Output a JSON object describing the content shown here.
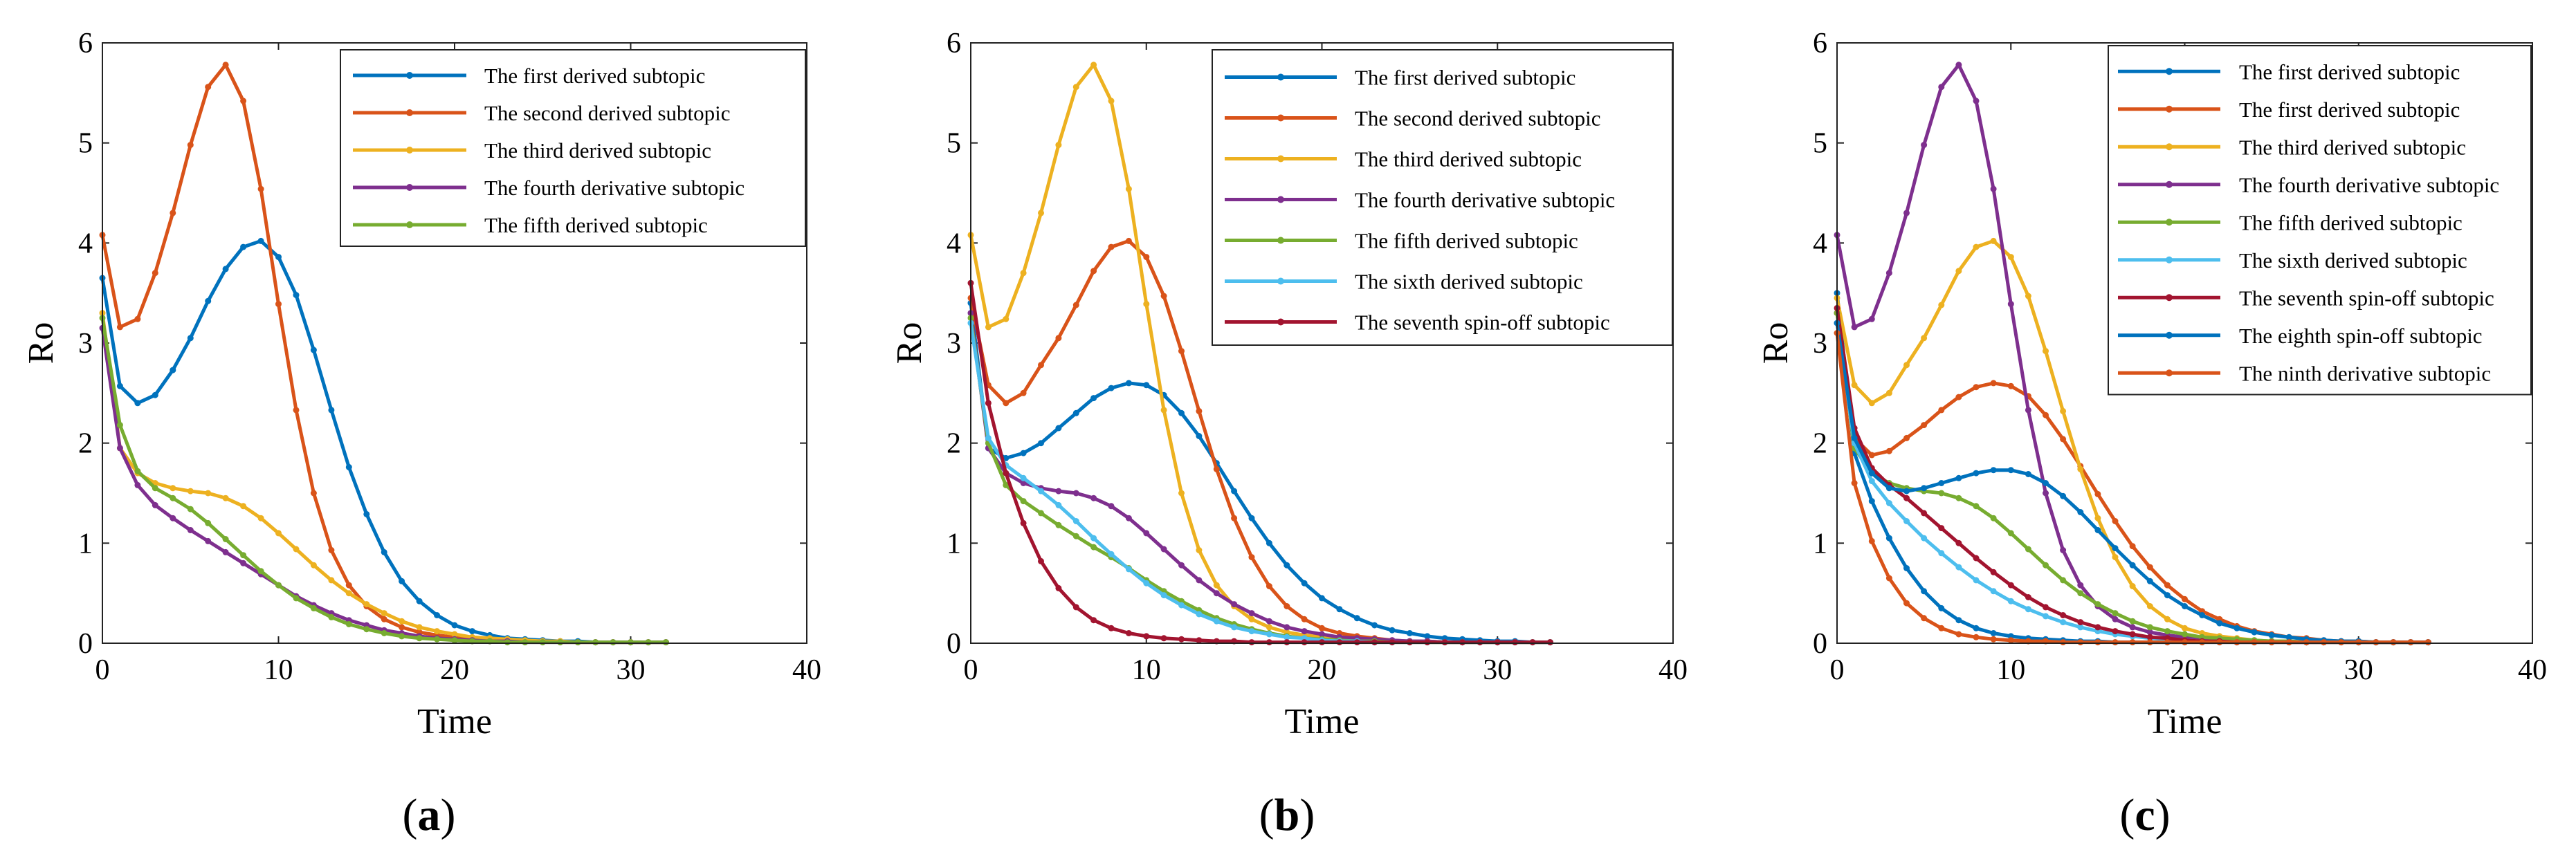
{
  "colors": {
    "blue": "#0072BD",
    "orange": "#D95319",
    "yellow": "#EDB120",
    "purple": "#7E2F8E",
    "green": "#77AC30",
    "cyan": "#4DBEEE",
    "darkred": "#A2142F"
  },
  "chart_data": [
    {
      "type": "line",
      "panel_label": "a",
      "xlabel": "Time",
      "ylabel": "Ro",
      "xlim": [
        0,
        40
      ],
      "ylim": [
        0,
        6
      ],
      "xticks": [
        0,
        10,
        20,
        30,
        40
      ],
      "yticks": [
        0,
        1,
        2,
        3,
        4,
        5,
        6
      ],
      "legend_position": "top-right",
      "series": [
        {
          "name": "The first derived subtopic",
          "color": "blue",
          "x_end": 32,
          "values": [
            3.65,
            2.57,
            2.4,
            2.48,
            2.73,
            3.05,
            3.42,
            3.74,
            3.96,
            4.02,
            3.86,
            3.48,
            2.93,
            2.33,
            1.76,
            1.29,
            0.91,
            0.62,
            0.42,
            0.28,
            0.18,
            0.12,
            0.08,
            0.05,
            0.04,
            0.03,
            0.02,
            0.02,
            0.01,
            0.01,
            0.01,
            0.01,
            0.01
          ]
        },
        {
          "name": "The second derived subtopic",
          "color": "orange",
          "x_end": 32,
          "values": [
            4.08,
            3.16,
            3.24,
            3.7,
            4.3,
            4.98,
            5.56,
            5.78,
            5.42,
            4.54,
            3.39,
            2.33,
            1.5,
            0.93,
            0.58,
            0.37,
            0.24,
            0.16,
            0.11,
            0.08,
            0.06,
            0.04,
            0.03,
            0.03,
            0.02,
            0.02,
            0.01,
            0.01,
            0.01,
            0.01,
            0.01,
            0.01,
            0.01
          ]
        },
        {
          "name": "The third derived subtopic",
          "color": "yellow",
          "x_end": 32,
          "values": [
            3.3,
            1.95,
            1.7,
            1.6,
            1.55,
            1.52,
            1.5,
            1.45,
            1.37,
            1.25,
            1.1,
            0.94,
            0.78,
            0.63,
            0.5,
            0.39,
            0.3,
            0.22,
            0.16,
            0.12,
            0.09,
            0.06,
            0.05,
            0.04,
            0.03,
            0.02,
            0.02,
            0.01,
            0.01,
            0.01,
            0.01,
            0.01,
            0.01
          ]
        },
        {
          "name": "The fourth derivative subtopic",
          "color": "purple",
          "x_end": 32,
          "values": [
            3.15,
            1.95,
            1.58,
            1.38,
            1.25,
            1.13,
            1.02,
            0.91,
            0.8,
            0.69,
            0.58,
            0.47,
            0.38,
            0.3,
            0.23,
            0.18,
            0.13,
            0.1,
            0.07,
            0.05,
            0.04,
            0.03,
            0.02,
            0.02,
            0.01,
            0.01,
            0.01,
            0.01,
            0.01,
            0.01,
            0.01,
            0.01,
            0.01
          ]
        },
        {
          "name": "The fifth derived subtopic",
          "color": "green",
          "x_end": 32,
          "values": [
            3.25,
            2.18,
            1.72,
            1.55,
            1.45,
            1.34,
            1.2,
            1.04,
            0.88,
            0.72,
            0.58,
            0.45,
            0.35,
            0.26,
            0.19,
            0.14,
            0.1,
            0.07,
            0.05,
            0.04,
            0.03,
            0.02,
            0.02,
            0.01,
            0.01,
            0.01,
            0.01,
            0.01,
            0.01,
            0.01,
            0.01,
            0.01,
            0.01
          ]
        }
      ]
    },
    {
      "type": "line",
      "panel_label": "b",
      "xlabel": "Time",
      "ylabel": "Ro",
      "xlim": [
        0,
        40
      ],
      "ylim": [
        0,
        6
      ],
      "xticks": [
        0,
        10,
        20,
        30,
        40
      ],
      "yticks": [
        0,
        1,
        2,
        3,
        4,
        5,
        6
      ],
      "legend_position": "top-right",
      "series": [
        {
          "name": "The first derived subtopic",
          "color": "blue",
          "x_end": 33,
          "values": [
            3.4,
            1.95,
            1.85,
            1.9,
            2.0,
            2.15,
            2.3,
            2.45,
            2.55,
            2.6,
            2.58,
            2.48,
            2.3,
            2.07,
            1.8,
            1.52,
            1.25,
            1.0,
            0.78,
            0.6,
            0.45,
            0.34,
            0.25,
            0.18,
            0.13,
            0.1,
            0.07,
            0.05,
            0.04,
            0.03,
            0.02,
            0.02,
            0.01,
            0.01
          ]
        },
        {
          "name": "The second derived subtopic",
          "color": "orange",
          "x_end": 33,
          "values": [
            3.45,
            2.58,
            2.4,
            2.5,
            2.78,
            3.05,
            3.38,
            3.72,
            3.96,
            4.02,
            3.86,
            3.47,
            2.92,
            2.32,
            1.74,
            1.25,
            0.86,
            0.57,
            0.37,
            0.24,
            0.15,
            0.1,
            0.07,
            0.05,
            0.03,
            0.02,
            0.02,
            0.01,
            0.01,
            0.01,
            0.01,
            0.01,
            0.01,
            0.01
          ]
        },
        {
          "name": "The third derived subtopic",
          "color": "yellow",
          "x_end": 33,
          "values": [
            4.08,
            3.16,
            3.24,
            3.7,
            4.3,
            4.98,
            5.56,
            5.78,
            5.42,
            4.54,
            3.39,
            2.33,
            1.5,
            0.93,
            0.58,
            0.37,
            0.24,
            0.16,
            0.11,
            0.08,
            0.06,
            0.04,
            0.03,
            0.03,
            0.02,
            0.02,
            0.01,
            0.01,
            0.01,
            0.01,
            0.01,
            0.01,
            0.01,
            0.01
          ]
        },
        {
          "name": "The fourth derivative subtopic",
          "color": "purple",
          "x_end": 33,
          "values": [
            3.3,
            1.95,
            1.7,
            1.6,
            1.55,
            1.52,
            1.5,
            1.45,
            1.37,
            1.25,
            1.1,
            0.94,
            0.78,
            0.63,
            0.5,
            0.39,
            0.3,
            0.22,
            0.16,
            0.12,
            0.09,
            0.06,
            0.05,
            0.04,
            0.03,
            0.02,
            0.02,
            0.01,
            0.01,
            0.01,
            0.01,
            0.01,
            0.01,
            0.01
          ]
        },
        {
          "name": "The fifth derived subtopic",
          "color": "green",
          "x_end": 33,
          "values": [
            3.25,
            2.0,
            1.58,
            1.42,
            1.3,
            1.18,
            1.07,
            0.96,
            0.86,
            0.75,
            0.63,
            0.52,
            0.42,
            0.33,
            0.25,
            0.19,
            0.14,
            0.1,
            0.07,
            0.05,
            0.04,
            0.03,
            0.02,
            0.02,
            0.01,
            0.01,
            0.01,
            0.01,
            0.01,
            0.01,
            0.01,
            0.01,
            0.01,
            0.01
          ]
        },
        {
          "name": "The sixth derived subtopic",
          "color": "cyan",
          "x_end": 33,
          "values": [
            3.2,
            2.05,
            1.78,
            1.65,
            1.52,
            1.38,
            1.22,
            1.05,
            0.89,
            0.74,
            0.6,
            0.48,
            0.38,
            0.29,
            0.22,
            0.16,
            0.12,
            0.09,
            0.06,
            0.05,
            0.03,
            0.02,
            0.02,
            0.01,
            0.01,
            0.01,
            0.01,
            0.01,
            0.01,
            0.01,
            0.01,
            0.01,
            0.01,
            0.01
          ]
        },
        {
          "name": "The seventh spin-off subtopic",
          "color": "darkred",
          "x_end": 33,
          "values": [
            3.6,
            2.4,
            1.7,
            1.2,
            0.82,
            0.55,
            0.36,
            0.23,
            0.15,
            0.1,
            0.07,
            0.05,
            0.04,
            0.03,
            0.02,
            0.02,
            0.01,
            0.01,
            0.01,
            0.01,
            0.01,
            0.01,
            0.01,
            0.01,
            0.01,
            0.01,
            0.01,
            0.01,
            0.01,
            0.01,
            0.01,
            0.01,
            0.01,
            0.01
          ]
        }
      ]
    },
    {
      "type": "line",
      "panel_label": "c",
      "xlabel": "Time",
      "ylabel": "Ro",
      "xlim": [
        0,
        40
      ],
      "ylim": [
        0,
        6
      ],
      "xticks": [
        0,
        10,
        20,
        30,
        40
      ],
      "yticks": [
        0,
        1,
        2,
        3,
        4,
        5,
        6
      ],
      "legend_position": "top-right",
      "series": [
        {
          "name": "The first derived subtopic",
          "color": "blue",
          "x_end": 34,
          "values": [
            3.5,
            1.9,
            1.42,
            1.05,
            0.75,
            0.52,
            0.35,
            0.23,
            0.15,
            0.1,
            0.07,
            0.05,
            0.04,
            0.03,
            0.02,
            0.02,
            0.01,
            0.01,
            0.01,
            0.01,
            0.01,
            0.01,
            0.01,
            0.01,
            0.01,
            0.01,
            0.01,
            0.01,
            0.01,
            0.01,
            0.01,
            0.01,
            0.01,
            0.01,
            0.01
          ]
        },
        {
          "name": "The first derived subtopic",
          "color": "orange",
          "x_end": 34,
          "values": [
            3.3,
            2.05,
            1.88,
            1.92,
            2.05,
            2.18,
            2.33,
            2.46,
            2.56,
            2.6,
            2.57,
            2.47,
            2.28,
            2.04,
            1.77,
            1.49,
            1.22,
            0.97,
            0.76,
            0.58,
            0.44,
            0.32,
            0.24,
            0.17,
            0.12,
            0.09,
            0.06,
            0.05,
            0.03,
            0.02,
            0.02,
            0.01,
            0.01,
            0.01,
            0.01
          ]
        },
        {
          "name": "The third derived subtopic",
          "color": "yellow",
          "x_end": 34,
          "values": [
            3.45,
            2.58,
            2.4,
            2.5,
            2.78,
            3.05,
            3.38,
            3.72,
            3.96,
            4.02,
            3.86,
            3.47,
            2.92,
            2.32,
            1.74,
            1.25,
            0.86,
            0.57,
            0.37,
            0.24,
            0.15,
            0.1,
            0.07,
            0.05,
            0.03,
            0.02,
            0.02,
            0.01,
            0.01,
            0.01,
            0.01,
            0.01,
            0.01,
            0.01,
            0.01
          ]
        },
        {
          "name": "The fourth derivative subtopic",
          "color": "purple",
          "x_end": 34,
          "values": [
            4.08,
            3.16,
            3.24,
            3.7,
            4.3,
            4.98,
            5.56,
            5.78,
            5.42,
            4.54,
            3.39,
            2.33,
            1.5,
            0.93,
            0.58,
            0.37,
            0.24,
            0.16,
            0.11,
            0.08,
            0.06,
            0.04,
            0.03,
            0.03,
            0.02,
            0.02,
            0.01,
            0.01,
            0.01,
            0.01,
            0.01,
            0.01,
            0.01,
            0.01,
            0.01
          ]
        },
        {
          "name": "The fifth derived subtopic",
          "color": "green",
          "x_end": 34,
          "values": [
            3.3,
            1.95,
            1.7,
            1.6,
            1.55,
            1.52,
            1.5,
            1.45,
            1.37,
            1.25,
            1.1,
            0.94,
            0.78,
            0.63,
            0.5,
            0.39,
            0.3,
            0.22,
            0.16,
            0.12,
            0.09,
            0.06,
            0.05,
            0.04,
            0.03,
            0.02,
            0.02,
            0.01,
            0.01,
            0.01,
            0.01,
            0.01,
            0.01,
            0.01,
            0.01
          ]
        },
        {
          "name": "The sixth derived subtopic",
          "color": "cyan",
          "x_end": 34,
          "values": [
            3.2,
            2.0,
            1.62,
            1.4,
            1.22,
            1.05,
            0.9,
            0.76,
            0.63,
            0.52,
            0.42,
            0.34,
            0.27,
            0.21,
            0.16,
            0.12,
            0.09,
            0.07,
            0.05,
            0.04,
            0.03,
            0.02,
            0.02,
            0.01,
            0.01,
            0.01,
            0.01,
            0.01,
            0.01,
            0.01,
            0.01,
            0.01,
            0.01,
            0.01,
            0.01
          ]
        },
        {
          "name": "The seventh spin-off subtopic",
          "color": "darkred",
          "x_end": 34,
          "values": [
            3.35,
            2.15,
            1.75,
            1.58,
            1.45,
            1.3,
            1.15,
            1.0,
            0.85,
            0.71,
            0.58,
            0.46,
            0.36,
            0.28,
            0.21,
            0.16,
            0.12,
            0.09,
            0.06,
            0.05,
            0.03,
            0.02,
            0.02,
            0.01,
            0.01,
            0.01,
            0.01,
            0.01,
            0.01,
            0.01,
            0.01,
            0.01,
            0.01,
            0.01,
            0.01
          ]
        },
        {
          "name": "The eighth spin-off subtopic",
          "color": "blue",
          "x_end": 34,
          "values": [
            3.2,
            2.05,
            1.7,
            1.55,
            1.52,
            1.55,
            1.6,
            1.65,
            1.7,
            1.73,
            1.73,
            1.69,
            1.6,
            1.47,
            1.31,
            1.13,
            0.95,
            0.78,
            0.62,
            0.48,
            0.37,
            0.28,
            0.2,
            0.15,
            0.11,
            0.08,
            0.06,
            0.04,
            0.03,
            0.02,
            0.02,
            0.01,
            0.01,
            0.01,
            0.01
          ]
        },
        {
          "name": "The ninth derivative subtopic",
          "color": "orange",
          "x_end": 34,
          "values": [
            3.1,
            1.6,
            1.02,
            0.65,
            0.4,
            0.25,
            0.15,
            0.09,
            0.06,
            0.04,
            0.03,
            0.02,
            0.02,
            0.01,
            0.01,
            0.01,
            0.01,
            0.01,
            0.01,
            0.01,
            0.01,
            0.01,
            0.01,
            0.01,
            0.01,
            0.01,
            0.01,
            0.01,
            0.01,
            0.01,
            0.01,
            0.01,
            0.01,
            0.01,
            0.01
          ]
        }
      ]
    }
  ]
}
